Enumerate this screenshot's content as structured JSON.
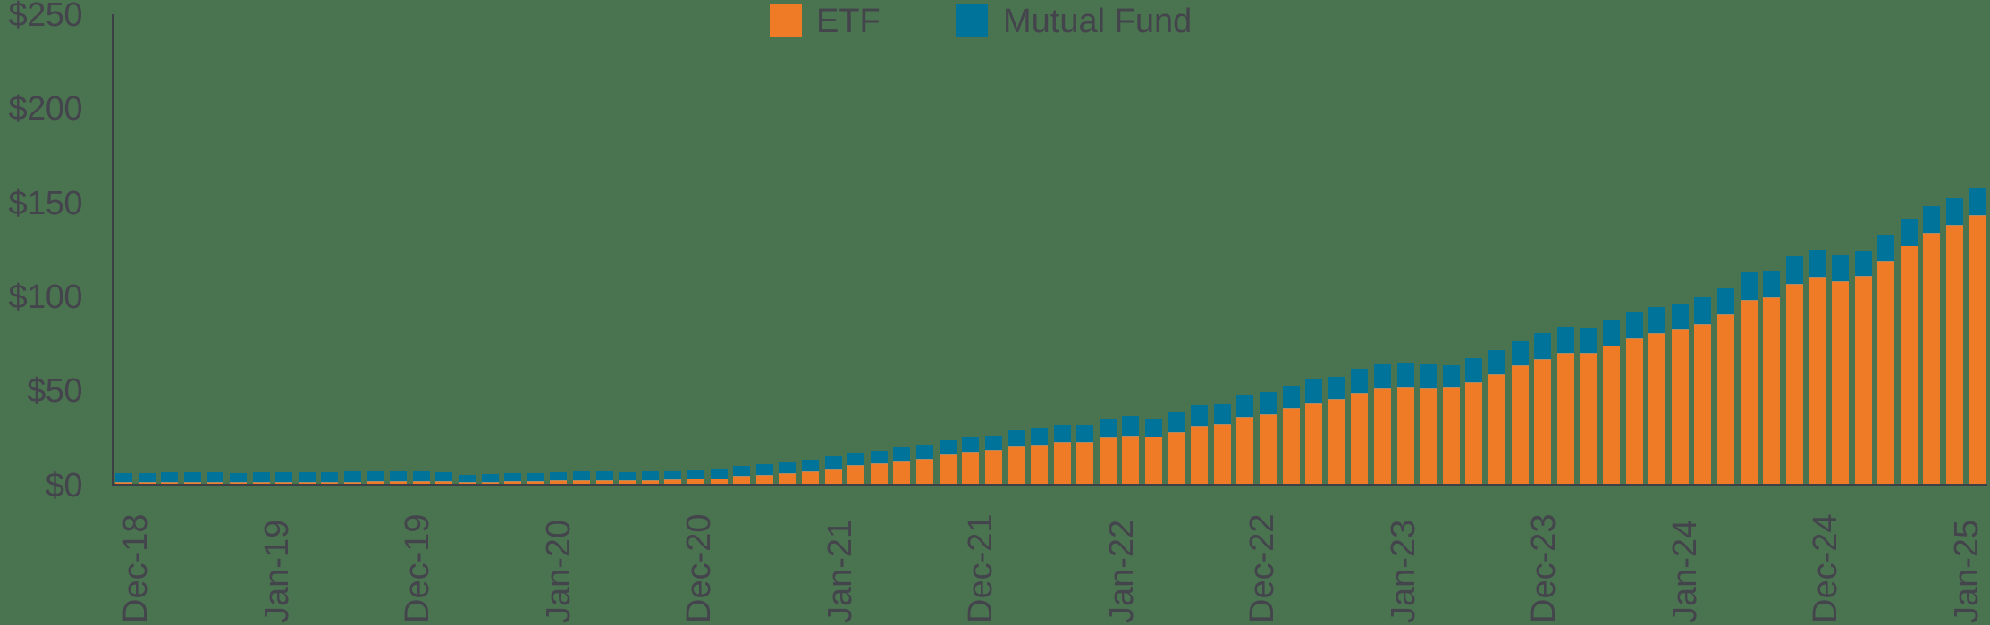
{
  "chart_data": {
    "type": "bar",
    "stacked": true,
    "title": "",
    "xlabel": "",
    "ylabel": "",
    "ylim": [
      0,
      250
    ],
    "y_ticks": [
      "$0",
      "$50",
      "$100",
      "$150",
      "$200",
      "$250"
    ],
    "y_tick_values": [
      0,
      50,
      100,
      150,
      200,
      250
    ],
    "x_tick_labels": [
      "Dec-18",
      "Jan-19",
      "Dec-19",
      "Jan-20",
      "Dec-20",
      "Jan-21",
      "Dec-21",
      "Jan-22",
      "Dec-22",
      "Jan-23",
      "Dec-23",
      "Jan-24",
      "Dec-24",
      "Jan-25"
    ],
    "grid": false,
    "legend_position": "top-center",
    "colors": {
      "ETF": "#f07b26",
      "Mutual Fund": "#00739a"
    },
    "series": [
      {
        "name": "ETF",
        "values": [
          1.0,
          1.0,
          1.0,
          1.0,
          1.0,
          1.0,
          1.0,
          1.0,
          1.0,
          1.0,
          1.3,
          1.5,
          1.5,
          1.7,
          1.5,
          1.0,
          1.0,
          1.5,
          1.5,
          2.0,
          2.0,
          2.0,
          2.0,
          2.1,
          2.6,
          2.9,
          3.3,
          4.3,
          4.9,
          6.0,
          7.0,
          8.4,
          10.0,
          11.0,
          12.6,
          13.7,
          15.7,
          17.1,
          18.1,
          20.0,
          21.1,
          22.5,
          22.5,
          24.9,
          25.8,
          25.4,
          27.9,
          31.1,
          32.0,
          35.8,
          37.2,
          40.5,
          43.4,
          45.3,
          48.6,
          51.0,
          51.5,
          51.0,
          51.5,
          54.3,
          58.6,
          63.3,
          66.7,
          70.0,
          70.0,
          73.9,
          77.7,
          80.4,
          82.3,
          85.1,
          90.4,
          98.0,
          99.4,
          106.6,
          110.3,
          107.9,
          110.8,
          118.8,
          127.0,
          133.8,
          137.7,
          143.0
        ]
      },
      {
        "name": "Mutual Fund",
        "values": [
          4.8,
          4.8,
          5.3,
          5.3,
          5.3,
          4.8,
          5.3,
          5.3,
          5.3,
          5.3,
          5.5,
          5.3,
          5.3,
          5.1,
          4.8,
          3.9,
          4.3,
          4.3,
          4.3,
          4.3,
          4.8,
          4.8,
          4.3,
          5.2,
          4.7,
          4.9,
          4.9,
          5.3,
          5.7,
          6.0,
          6.0,
          6.5,
          6.8,
          6.7,
          7.0,
          7.4,
          7.8,
          7.7,
          7.6,
          8.6,
          9.0,
          9.0,
          9.0,
          10.0,
          10.5,
          9.5,
          10.3,
          10.9,
          10.9,
          11.9,
          11.9,
          11.9,
          12.3,
          11.9,
          12.8,
          12.8,
          12.8,
          12.8,
          11.8,
          12.8,
          12.8,
          12.8,
          13.7,
          13.7,
          13.3,
          13.6,
          13.6,
          13.8,
          13.8,
          14.3,
          13.7,
          14.7,
          13.7,
          14.6,
          14.2,
          13.8,
          13.3,
          13.8,
          14.1,
          14.2,
          14.3,
          14.5
        ]
      }
    ]
  },
  "legend": {
    "items": [
      {
        "label": "ETF",
        "color": "#f07b26"
      },
      {
        "label": "Mutual Fund",
        "color": "#00739a"
      }
    ]
  },
  "colors": {
    "background": "#4a7350",
    "axis": "#3d3f47",
    "text": "#44444c"
  }
}
